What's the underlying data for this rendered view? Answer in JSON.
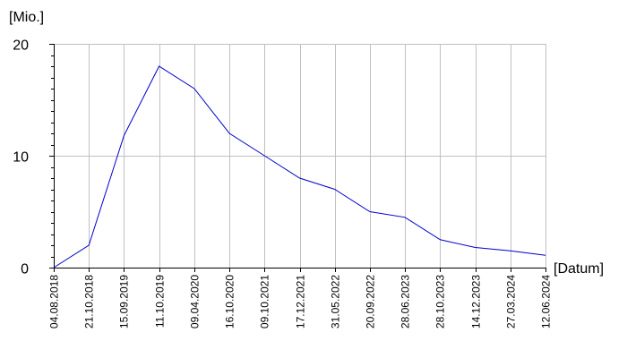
{
  "chart_data": {
    "type": "line",
    "ylabel": "[Mio.]",
    "xlabel": "[Datum]",
    "ylim": [
      0,
      20
    ],
    "yticks": [
      0,
      10,
      20
    ],
    "categories": [
      "04.08.2018",
      "21.10.2018",
      "15.09.2019",
      "11.10.2019",
      "09.04.2020",
      "16.10.2020",
      "09.10.2021",
      "17.12.2021",
      "31.05.2022",
      "20.09.2022",
      "28.06.2023",
      "28.10.2023",
      "14.12.2023",
      "27.03.2024",
      "12.06.2024"
    ],
    "series": [
      {
        "values": [
          0,
          2,
          11.8,
          18,
          16,
          12,
          10,
          8,
          7,
          5,
          4.5,
          2.5,
          1.8,
          1.5,
          1.1
        ],
        "color": "#0000cc"
      }
    ],
    "grid": true,
    "colors": {
      "grid": "#c0c0c0",
      "axis": "#000000"
    }
  }
}
